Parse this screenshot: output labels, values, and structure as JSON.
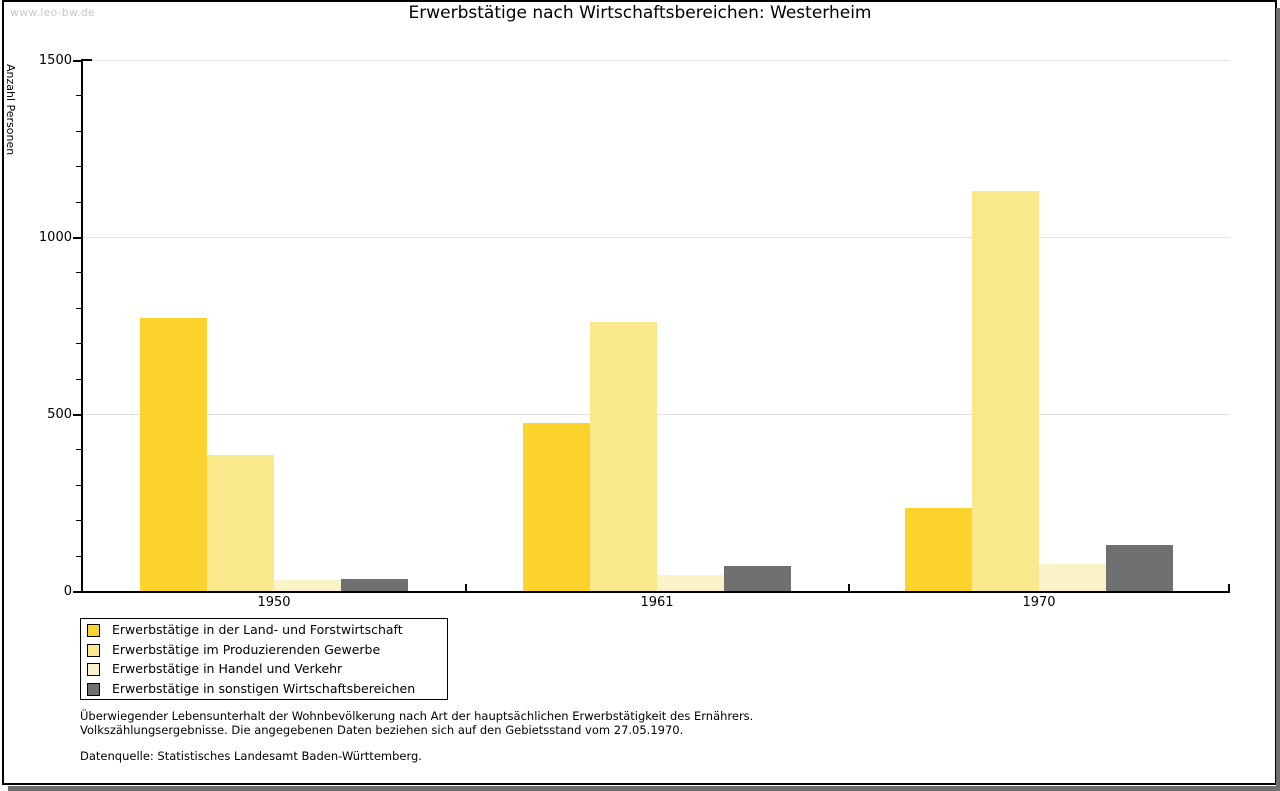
{
  "watermark": "www.leo-bw.de",
  "title": "Erwerbstätige nach Wirtschaftsbereichen: Westerheim",
  "chart_data": {
    "type": "bar",
    "title": "Erwerbstätige nach Wirtschaftsbereichen: Westerheim",
    "xlabel": "",
    "ylabel": "Anzahl Personen",
    "categories": [
      "1950",
      "1961",
      "1970"
    ],
    "series": [
      {
        "name": "Erwerbstätige in der Land- und Forstwirtschaft",
        "color": "#fcd32d",
        "values": [
          770,
          475,
          235
        ]
      },
      {
        "name": "Erwerbstätige im Produzierenden Gewerbe",
        "color": "#fae88c",
        "values": [
          385,
          760,
          1130
        ]
      },
      {
        "name": "Erwerbstätige in Handel und Verkehr",
        "color": "#fbf3c8",
        "values": [
          30,
          45,
          75
        ]
      },
      {
        "name": "Erwerbstätige in sonstigen Wirtschaftsbereichen",
        "color": "#707070",
        "values": [
          35,
          70,
          130
        ]
      }
    ],
    "ylim": [
      0,
      1500
    ],
    "yticks": [
      0,
      500,
      1000,
      1500
    ],
    "minor_tick_step": 100,
    "grid": true,
    "gridline_color": "#e3e3e3",
    "legend_position": "bottom-left"
  },
  "footnotes": {
    "line1": "Überwiegender Lebensunterhalt der Wohnbevölkerung nach Art der hauptsächlichen Erwerbstätigkeit des Ernährers.",
    "line2": "Volkszählungsergebnisse. Die angegebenen Daten beziehen sich auf den Gebietsstand vom 27.05.1970.",
    "source": "Datenquelle: Statistisches Landesamt Baden-Württemberg."
  }
}
